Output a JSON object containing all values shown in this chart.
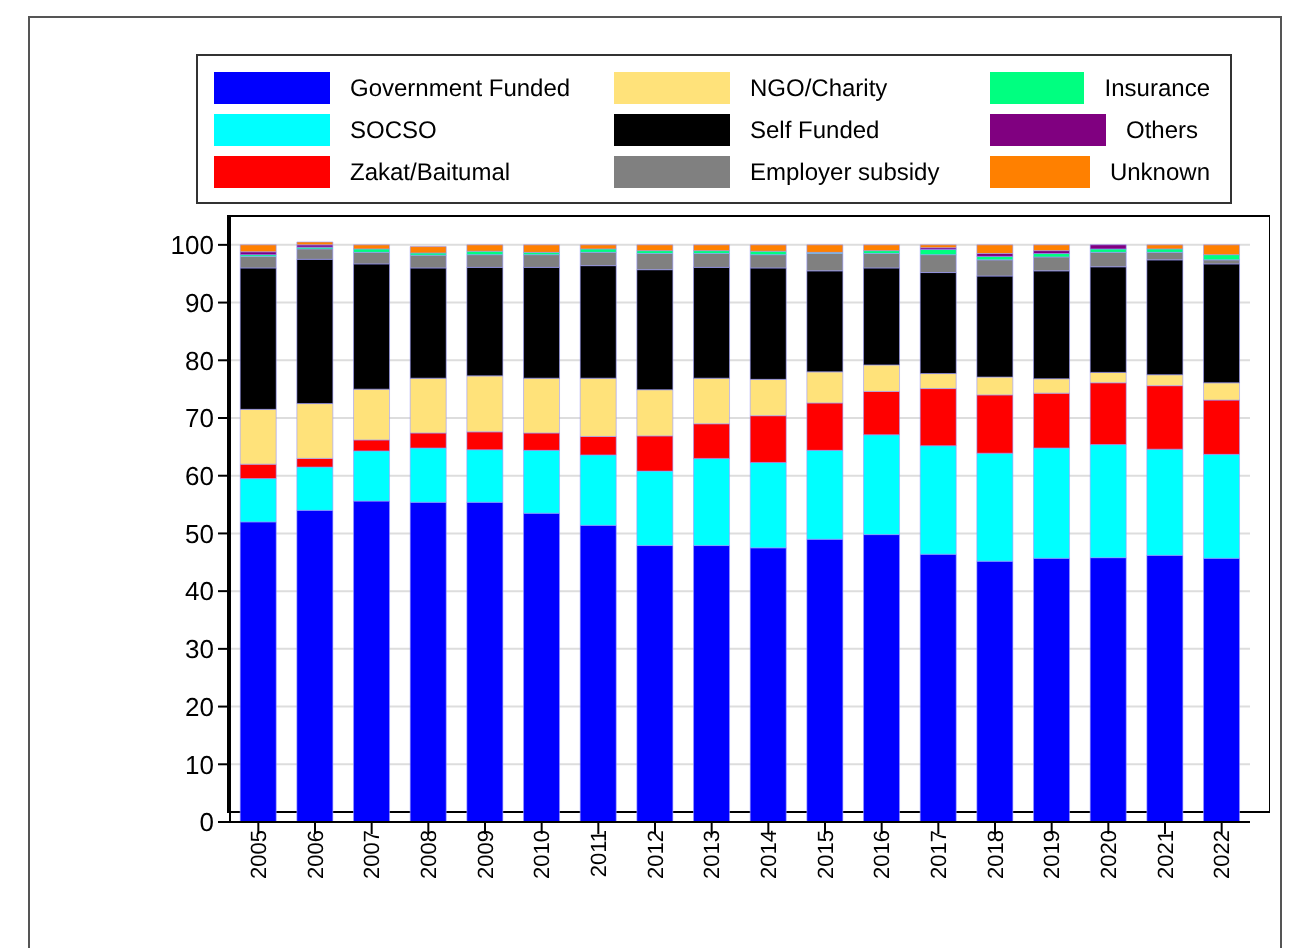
{
  "chart_data": {
    "type": "bar",
    "stacked": true,
    "categories": [
      "2005",
      "2006",
      "2007",
      "2008",
      "2009",
      "2010",
      "2011",
      "2012",
      "2013",
      "2014",
      "2015",
      "2016",
      "2017",
      "2018",
      "2019",
      "2020",
      "2021",
      "2022"
    ],
    "series": [
      {
        "name": "Government Funded",
        "color": "#0000ff",
        "values": [
          52,
          54,
          55.6,
          55.4,
          55.4,
          53.5,
          51.4,
          47.9,
          47.9,
          47.5,
          49,
          49.8,
          46.4,
          45.2,
          45.7,
          45.8,
          46.2,
          45.7
        ]
      },
      {
        "name": "SOCSO",
        "color": "#00ffff",
        "values": [
          7.5,
          7.5,
          8.7,
          9.4,
          9.1,
          10.9,
          12.2,
          12.9,
          15.1,
          14.8,
          15.4,
          17.3,
          18.8,
          18.7,
          19.1,
          19.6,
          18.4,
          18
        ]
      },
      {
        "name": "Zakat/Baitumal",
        "color": "#ff0000",
        "values": [
          2.5,
          1.5,
          1.9,
          2.6,
          3.1,
          3,
          3.2,
          6.1,
          6,
          8.1,
          8.2,
          7.5,
          9.9,
          10.1,
          9.5,
          10.7,
          11,
          9.4
        ]
      },
      {
        "name": "NGO/Charity",
        "color": "#ffe27a",
        "values": [
          9.5,
          9.5,
          8.8,
          9.5,
          9.7,
          9.5,
          10.1,
          8,
          7.9,
          6.3,
          5.4,
          4.6,
          2.6,
          3.1,
          2.5,
          1.8,
          1.9,
          3
        ]
      },
      {
        "name": "Self Funded",
        "color": "#000000",
        "values": [
          24.5,
          25,
          21.7,
          19.1,
          18.8,
          19.2,
          19.5,
          20.8,
          19.2,
          19.3,
          17.5,
          16.8,
          17.5,
          17.5,
          18.7,
          18.3,
          19.9,
          20.6
        ]
      },
      {
        "name": "Employer subsidy",
        "color": "#808080",
        "values": [
          2,
          1.8,
          2,
          2.2,
          2.2,
          2.2,
          2.3,
          2.8,
          2.4,
          2.3,
          3,
          2.5,
          3.1,
          2.8,
          2.4,
          2.5,
          1.3,
          0.7
        ]
      },
      {
        "name": "Insurance",
        "color": "#00ff80",
        "values": [
          0.3,
          0.3,
          0.6,
          0.4,
          0.6,
          0.4,
          0.6,
          0.5,
          0.5,
          0.6,
          0.2,
          0.5,
          0.9,
          0.6,
          0.6,
          0.6,
          0.6,
          0.9
        ]
      },
      {
        "name": "Others",
        "color": "#800080",
        "values": [
          0.5,
          0.4,
          0,
          0,
          0,
          0,
          0,
          0,
          0,
          0,
          0,
          0,
          0.3,
          0.5,
          0.5,
          0.7,
          0,
          0
        ]
      },
      {
        "name": "Unknown",
        "color": "#ff8000",
        "values": [
          1.2,
          0.5,
          0.7,
          1.1,
          1.1,
          1.3,
          0.7,
          1,
          1,
          1.1,
          1.3,
          1,
          0.5,
          1.5,
          1,
          0,
          0.7,
          1.7
        ]
      }
    ],
    "ylim": [
      0,
      105
    ],
    "yticks": [
      0,
      10,
      20,
      30,
      40,
      50,
      60,
      70,
      80,
      90,
      100
    ],
    "grid": "y",
    "legend": "top"
  }
}
